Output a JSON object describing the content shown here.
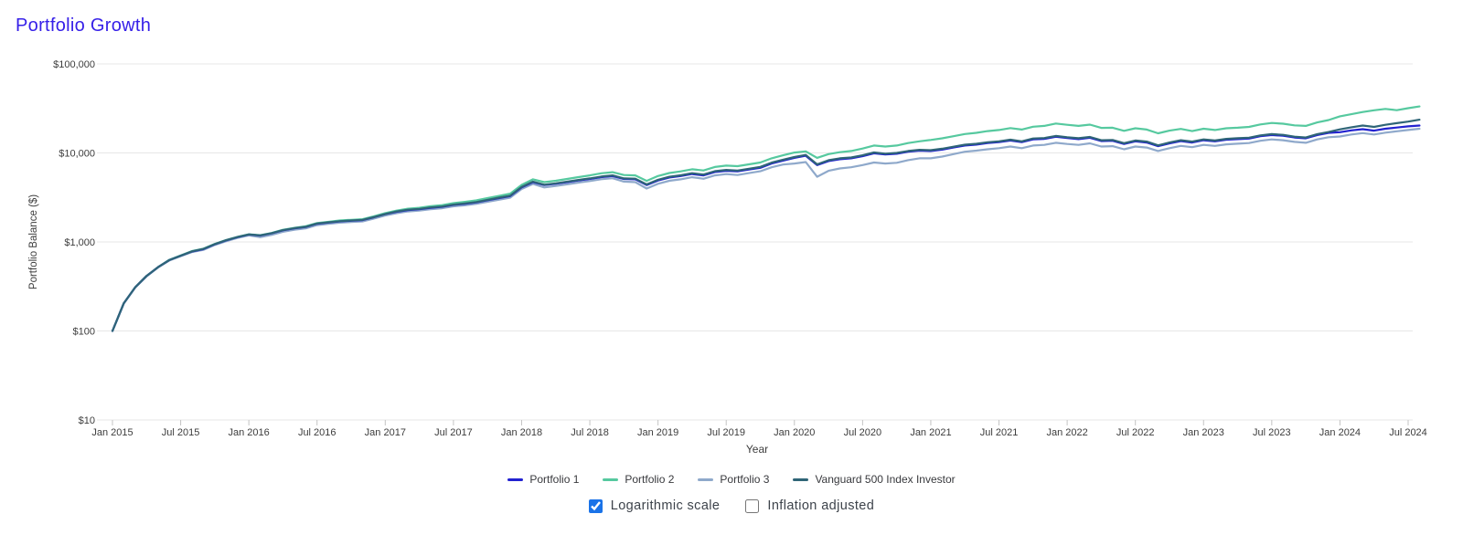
{
  "page": {
    "title": "Portfolio Growth",
    "title_color": "#3620e8"
  },
  "chart_data": {
    "type": "line",
    "title": "Portfolio Growth",
    "xlabel": "Year",
    "ylabel": "Portfolio Balance ($)",
    "y_scale": "logarithmic",
    "grid": "horizontal",
    "legend_position": "bottom",
    "y_ticks": [
      "$100,000",
      "$10,000",
      "$1,000",
      "$100",
      "$10"
    ],
    "y_tick_values": [
      100000,
      10000,
      1000,
      100,
      10
    ],
    "ylim": [
      10,
      100000
    ],
    "x_ticks": [
      "Jan 2015",
      "Jul 2015",
      "Jan 2016",
      "Jul 2016",
      "Jan 2017",
      "Jul 2017",
      "Jan 2018",
      "Jul 2018",
      "Jan 2019",
      "Jul 2019",
      "Jan 2020",
      "Jul 2020",
      "Jan 2021",
      "Jul 2021",
      "Jan 2022",
      "Jul 2022",
      "Jan 2023",
      "Jul 2023",
      "Jan 2024",
      "Jul 2024"
    ],
    "start_month": "2015-01",
    "frequency": "monthly",
    "series": [
      {
        "name": "Portfolio 1",
        "color": "#2222d0",
        "values": [
          100,
          205,
          310,
          415,
          520,
          625,
          700,
          780,
          830,
          940,
          1040,
          1130,
          1210,
          1180,
          1250,
          1350,
          1420,
          1470,
          1600,
          1650,
          1700,
          1730,
          1760,
          1890,
          2050,
          2180,
          2280,
          2330,
          2420,
          2480,
          2610,
          2680,
          2780,
          2940,
          3100,
          3270,
          4100,
          4700,
          4350,
          4500,
          4700,
          4900,
          5100,
          5350,
          5500,
          5100,
          5050,
          4350,
          4900,
          5300,
          5500,
          5800,
          5600,
          6100,
          6300,
          6200,
          6500,
          6800,
          7600,
          8200,
          8800,
          9300,
          7300,
          8100,
          8500,
          8700,
          9200,
          9900,
          9600,
          9800,
          10300,
          10600,
          10500,
          10900,
          11500,
          12100,
          12400,
          12900,
          13200,
          13800,
          13200,
          14200,
          14400,
          15200,
          14700,
          14300,
          14800,
          13600,
          13700,
          12600,
          13500,
          13100,
          11900,
          12800,
          13600,
          13100,
          13900,
          13500,
          14100,
          14300,
          14500,
          15400,
          15900,
          15600,
          14900,
          14600,
          15900,
          16800,
          17100,
          17900,
          18500,
          17800,
          18700,
          19300,
          19900,
          20300
        ]
      },
      {
        "name": "Portfolio 2",
        "color": "#56c99f",
        "values": [
          100,
          205,
          310,
          415,
          520,
          630,
          705,
          790,
          840,
          950,
          1050,
          1140,
          1220,
          1190,
          1260,
          1370,
          1440,
          1500,
          1630,
          1680,
          1740,
          1770,
          1800,
          1940,
          2110,
          2250,
          2360,
          2420,
          2520,
          2590,
          2730,
          2820,
          2930,
          3110,
          3290,
          3490,
          4380,
          5050,
          4700,
          4870,
          5100,
          5350,
          5600,
          5900,
          6080,
          5650,
          5600,
          4850,
          5500,
          5950,
          6200,
          6550,
          6350,
          6950,
          7200,
          7100,
          7450,
          7800,
          8700,
          9400,
          10100,
          10400,
          8800,
          9700,
          10200,
          10500,
          11200,
          12100,
          11800,
          12100,
          12900,
          13500,
          14000,
          14600,
          15400,
          16300,
          16800,
          17600,
          18100,
          19000,
          18300,
          19700,
          20100,
          21400,
          20700,
          20100,
          20800,
          19100,
          19200,
          17700,
          18900,
          18300,
          16600,
          17800,
          18600,
          17600,
          18700,
          18100,
          18900,
          19200,
          19600,
          20900,
          21700,
          21300,
          20400,
          20100,
          22000,
          23400,
          25800,
          27200,
          28800,
          30100,
          31200,
          30200,
          31800,
          33300
        ]
      },
      {
        "name": "Portfolio 3",
        "color": "#8fa9cb",
        "values": [
          100,
          203,
          307,
          410,
          515,
          618,
          692,
          770,
          815,
          925,
          1020,
          1110,
          1185,
          1130,
          1200,
          1300,
          1370,
          1420,
          1545,
          1595,
          1645,
          1675,
          1700,
          1830,
          1980,
          2100,
          2200,
          2250,
          2330,
          2390,
          2510,
          2580,
          2680,
          2830,
          2980,
          3140,
          3930,
          4480,
          4100,
          4250,
          4440,
          4640,
          4830,
          5060,
          5200,
          4760,
          4700,
          3980,
          4500,
          4870,
          5050,
          5330,
          5120,
          5600,
          5780,
          5650,
          5940,
          6220,
          6900,
          7400,
          7600,
          7900,
          5400,
          6300,
          6700,
          6900,
          7300,
          7800,
          7600,
          7750,
          8300,
          8700,
          8700,
          9100,
          9700,
          10300,
          10600,
          11000,
          11300,
          11800,
          11300,
          12100,
          12300,
          13000,
          12600,
          12300,
          12800,
          11800,
          11900,
          11000,
          11800,
          11500,
          10500,
          11300,
          12000,
          11600,
          12300,
          12000,
          12500,
          12700,
          12900,
          13700,
          14200,
          13900,
          13300,
          13000,
          14200,
          15000,
          15300,
          16100,
          16700,
          16100,
          16900,
          17500,
          18100,
          18700
        ]
      },
      {
        "name": "Vanguard 500 Index Investor",
        "color": "#2f6577",
        "values": [
          100,
          205,
          310,
          415,
          520,
          625,
          700,
          785,
          835,
          945,
          1045,
          1135,
          1215,
          1185,
          1255,
          1355,
          1430,
          1480,
          1610,
          1660,
          1710,
          1740,
          1770,
          1900,
          2060,
          2200,
          2300,
          2350,
          2440,
          2500,
          2630,
          2710,
          2810,
          2970,
          3140,
          3310,
          4140,
          4760,
          4400,
          4560,
          4760,
          4970,
          5170,
          5430,
          5590,
          5180,
          5140,
          4430,
          4990,
          5400,
          5610,
          5920,
          5720,
          6230,
          6440,
          6340,
          6650,
          6960,
          7780,
          8390,
          9000,
          9500,
          7450,
          8280,
          8690,
          8890,
          9400,
          10120,
          9810,
          10010,
          10520,
          10830,
          10730,
          11140,
          11750,
          12370,
          12670,
          13180,
          13490,
          14100,
          13490,
          14510,
          14710,
          15530,
          15020,
          14610,
          15120,
          13900,
          14000,
          12880,
          13800,
          13390,
          12160,
          13080,
          13900,
          13390,
          14200,
          13800,
          14400,
          14620,
          14820,
          15740,
          16250,
          15950,
          15230,
          14920,
          16250,
          17170,
          18400,
          19400,
          20300,
          19600,
          20700,
          21600,
          22500,
          23600
        ]
      }
    ]
  },
  "controls": {
    "logarithmic_scale": {
      "label": "Logarithmic scale",
      "checked": true
    },
    "inflation_adjusted": {
      "label": "Inflation adjusted",
      "checked": false
    }
  },
  "colors": {
    "title": "#3620e8",
    "gridline": "#e7e7e7",
    "tick_mark": "#c4c4c4",
    "axis_text": "#3c3c3c",
    "checkbox_accent": "#1a73e8"
  }
}
